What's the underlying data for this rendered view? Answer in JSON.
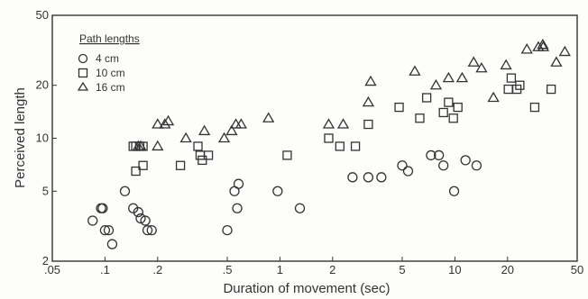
{
  "chart_data": {
    "type": "scatter",
    "title": "",
    "xlabel": "Duration of movement (sec)",
    "ylabel": "Perceived length",
    "xscale": "log",
    "yscale": "log",
    "xlim": [
      0.05,
      50
    ],
    "ylim": [
      2,
      50
    ],
    "x_ticks": [
      ".05",
      ".1",
      ".2",
      ".5",
      "1",
      "2",
      "5",
      "10",
      "20",
      "50"
    ],
    "y_ticks": [
      "2",
      "5",
      "10",
      "20",
      "50"
    ],
    "grid": false,
    "legend": {
      "title": "Path lengths",
      "placement": "top-left"
    },
    "series": [
      {
        "name": "4 cm",
        "marker": "circle",
        "points": [
          [
            0.085,
            3.4
          ],
          [
            0.095,
            4.0
          ],
          [
            0.097,
            4.0
          ],
          [
            0.1,
            3.0
          ],
          [
            0.105,
            3.0
          ],
          [
            0.11,
            2.5
          ],
          [
            0.13,
            5.0
          ],
          [
            0.145,
            4.0
          ],
          [
            0.155,
            3.8
          ],
          [
            0.16,
            3.5
          ],
          [
            0.17,
            3.4
          ],
          [
            0.175,
            3.0
          ],
          [
            0.185,
            3.0
          ],
          [
            0.5,
            3.0
          ],
          [
            0.55,
            5.0
          ],
          [
            0.57,
            4.0
          ],
          [
            0.58,
            5.5
          ],
          [
            0.97,
            5.0
          ],
          [
            1.3,
            4.0
          ],
          [
            2.6,
            6.0
          ],
          [
            3.2,
            6.0
          ],
          [
            3.8,
            6.0
          ],
          [
            5.0,
            7.0
          ],
          [
            5.4,
            6.5
          ],
          [
            7.3,
            8.0
          ],
          [
            8.1,
            8.0
          ],
          [
            8.6,
            7.0
          ],
          [
            9.9,
            5.0
          ],
          [
            11.5,
            7.5
          ],
          [
            13.3,
            7.0
          ]
        ]
      },
      {
        "name": "10 cm",
        "marker": "square",
        "points": [
          [
            0.145,
            9.0
          ],
          [
            0.15,
            9.0
          ],
          [
            0.158,
            9.0
          ],
          [
            0.165,
            9.0
          ],
          [
            0.15,
            6.5
          ],
          [
            0.165,
            7.0
          ],
          [
            0.27,
            7.0
          ],
          [
            0.34,
            9.0
          ],
          [
            0.35,
            8.0
          ],
          [
            0.36,
            7.5
          ],
          [
            0.39,
            8.0
          ],
          [
            1.1,
            8.0
          ],
          [
            1.9,
            10.0
          ],
          [
            2.2,
            9.0
          ],
          [
            2.7,
            9.0
          ],
          [
            3.2,
            12.0
          ],
          [
            4.8,
            15.0
          ],
          [
            6.3,
            13.0
          ],
          [
            6.9,
            17.0
          ],
          [
            8.6,
            14.0
          ],
          [
            9.2,
            16.0
          ],
          [
            9.8,
            13.0
          ],
          [
            10.4,
            15.0
          ],
          [
            20.2,
            19.0
          ],
          [
            21.0,
            22.0
          ],
          [
            22.6,
            19.0
          ],
          [
            23.5,
            20.0
          ],
          [
            28.6,
            15.0
          ],
          [
            35.5,
            19.0
          ]
        ]
      },
      {
        "name": "16 cm",
        "marker": "triangle",
        "points": [
          [
            0.155,
            9.0
          ],
          [
            0.16,
            9.0
          ],
          [
            0.2,
            9.0
          ],
          [
            0.2,
            12.0
          ],
          [
            0.22,
            12.0
          ],
          [
            0.23,
            12.5
          ],
          [
            0.29,
            10.0
          ],
          [
            0.37,
            11.0
          ],
          [
            0.48,
            10.0
          ],
          [
            0.53,
            11.0
          ],
          [
            0.56,
            12.0
          ],
          [
            0.6,
            12.0
          ],
          [
            0.86,
            13.0
          ],
          [
            1.9,
            12.0
          ],
          [
            2.3,
            12.0
          ],
          [
            3.2,
            16.0
          ],
          [
            3.3,
            21.0
          ],
          [
            5.9,
            24.0
          ],
          [
            7.8,
            20.0
          ],
          [
            9.2,
            22.0
          ],
          [
            11.0,
            22.0
          ],
          [
            12.8,
            27.0
          ],
          [
            14.2,
            25.0
          ],
          [
            16.6,
            17.0
          ],
          [
            19.6,
            26.0
          ],
          [
            25.8,
            32.0
          ],
          [
            30.0,
            33.0
          ],
          [
            31.8,
            34.0
          ],
          [
            32.0,
            33.0
          ],
          [
            38.0,
            27.0
          ],
          [
            42.5,
            31.0
          ]
        ]
      }
    ]
  }
}
